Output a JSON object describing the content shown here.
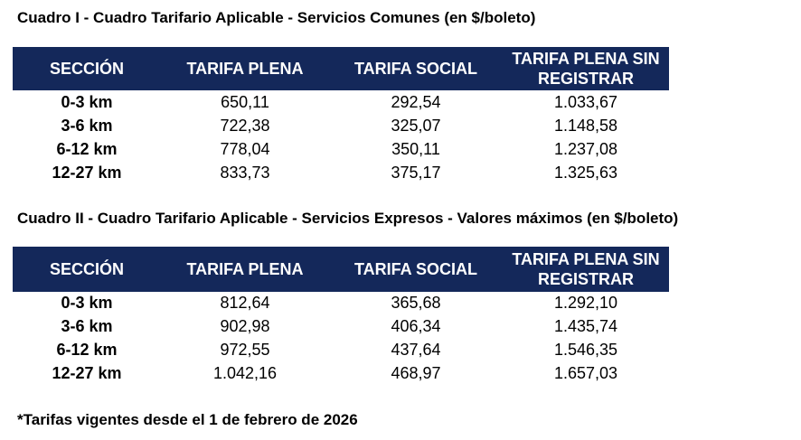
{
  "tables": [
    {
      "title": "Cuadro I - Cuadro Tarifario Aplicable - Servicios Comunes (en $/boleto)",
      "header": [
        "SECCIÓN",
        "TARIFA PLENA",
        "TARIFA SOCIAL",
        "TARIFA PLENA SIN REGISTRAR"
      ],
      "rows": [
        [
          "0-3 km",
          "650,11",
          "292,54",
          "1.033,67"
        ],
        [
          "3-6 km",
          "722,38",
          "325,07",
          "1.148,58"
        ],
        [
          "6-12 km",
          "778,04",
          "350,11",
          "1.237,08"
        ],
        [
          "12-27 km",
          "833,73",
          "375,17",
          "1.325,63"
        ]
      ]
    },
    {
      "title": "Cuadro II - Cuadro Tarifario Aplicable - Servicios Expresos - Valores máximos (en $/boleto)",
      "header": [
        "SECCIÓN",
        "TARIFA PLENA",
        "TARIFA SOCIAL",
        "TARIFA PLENA SIN REGISTRAR"
      ],
      "rows": [
        [
          "0-3 km",
          "812,64",
          "365,68",
          "1.292,10"
        ],
        [
          "3-6 km",
          "902,98",
          "406,34",
          "1.435,74"
        ],
        [
          "6-12 km",
          "972,55",
          "437,64",
          "1.546,35"
        ],
        [
          "12-27 km",
          "1.042,16",
          "468,97",
          "1.657,03"
        ]
      ]
    }
  ],
  "footnote": "*Tarifas vigentes desde el 1 de febrero de 2026"
}
